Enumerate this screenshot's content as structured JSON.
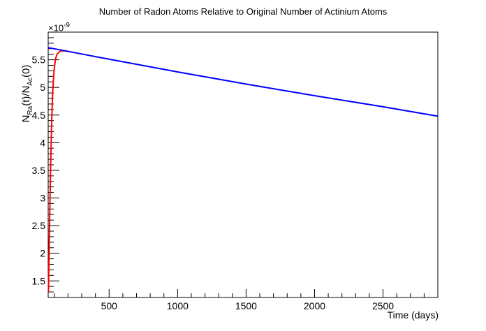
{
  "chart_data": {
    "type": "line",
    "title": "Number of Radon Atoms Relative to Original Number of Actinium Atoms",
    "xlabel": "Time (days)",
    "ylabel": {
      "base1": "N",
      "sub1": "Ra",
      "mid": "(t)/N",
      "sub2": "Ac",
      "tail": "(0)"
    },
    "y_multiplier": {
      "base": "×10",
      "exp": "-9"
    },
    "xlim": [
      55,
      2900
    ],
    "ylim": [
      1.2,
      6.0
    ],
    "x_ticks": [
      500,
      1000,
      1500,
      2000,
      2500
    ],
    "x_tick_labels": [
      "500",
      "1000",
      "1500",
      "2000",
      "2500"
    ],
    "y_ticks": [
      1.5,
      2,
      2.5,
      3,
      3.5,
      4,
      4.5,
      5,
      5.5
    ],
    "y_tick_labels": [
      "1.5",
      "2",
      "2.5",
      "3",
      "3.5",
      "4",
      "4.5",
      "5",
      "5.5"
    ],
    "grid": false,
    "series": [
      {
        "color": "#ff0000",
        "x": [
          57,
          60,
          63,
          66,
          70,
          74,
          78,
          82,
          86,
          90,
          95,
          100,
          105,
          110,
          115,
          120,
          130,
          140,
          150,
          160,
          170,
          180,
          190,
          200
        ],
        "y": [
          1.3,
          1.75,
          2.2,
          2.65,
          3.2,
          3.7,
          4.1,
          4.5,
          4.8,
          5.0,
          5.2,
          5.35,
          5.45,
          5.52,
          5.57,
          5.6,
          5.63,
          5.65,
          5.66,
          5.66,
          5.66,
          5.66,
          5.66,
          5.65
        ]
      },
      {
        "color": "#0000ff",
        "x": [
          55,
          500,
          1000,
          1500,
          2000,
          2500,
          2900
        ],
        "y": [
          5.72,
          5.51,
          5.28,
          5.06,
          4.85,
          4.65,
          4.48
        ]
      }
    ]
  }
}
